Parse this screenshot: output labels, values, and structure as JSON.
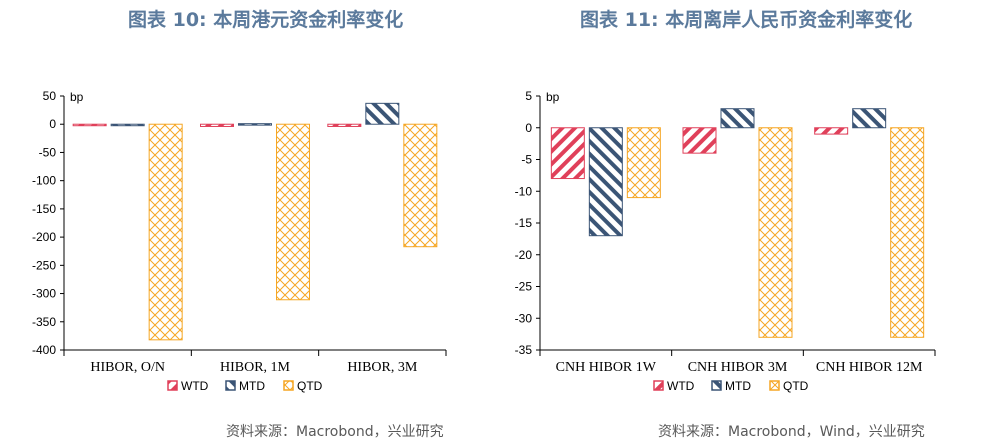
{
  "colors": {
    "wtd": "#e0405a",
    "mtd": "#3b5576",
    "qtd": "#f5a623",
    "title": "#5b7a9c"
  },
  "left": {
    "title": "图表 10: 本周港元资金利率变化",
    "source": "资料来源：Macrobond，兴业研究",
    "chart_data": {
      "type": "bar",
      "unit_label": "bp",
      "categories": [
        "HIBOR, O/N",
        "HIBOR, 1M",
        "HIBOR, 3M"
      ],
      "ylim": [
        -400,
        50
      ],
      "yticks": [
        50,
        0,
        -50,
        -100,
        -150,
        -200,
        -250,
        -300,
        -350,
        -400
      ],
      "series": [
        {
          "name": "WTD",
          "values": [
            -2,
            -4,
            -4
          ]
        },
        {
          "name": "MTD",
          "values": [
            -1,
            1,
            37
          ]
        },
        {
          "name": "QTD",
          "values": [
            -382,
            -311,
            -217
          ]
        }
      ],
      "legend": "bottom-center",
      "grid": false
    }
  },
  "right": {
    "title": "图表 11: 本周离岸人民币资金利率变化",
    "source": "资料来源：Macrobond，Wind，兴业研究",
    "chart_data": {
      "type": "bar",
      "unit_label": "bp",
      "categories": [
        "CNH HIBOR 1W",
        "CNH HIBOR 3M",
        "CNH HIBOR 12M"
      ],
      "ylim": [
        -35,
        5
      ],
      "yticks": [
        5,
        0,
        -5,
        -10,
        -15,
        -20,
        -25,
        -30,
        -35
      ],
      "series": [
        {
          "name": "WTD",
          "values": [
            -8,
            -4,
            -1
          ]
        },
        {
          "name": "MTD",
          "values": [
            -17,
            3,
            3
          ]
        },
        {
          "name": "QTD",
          "values": [
            -11,
            -33,
            -33
          ]
        }
      ],
      "legend": "bottom-center",
      "grid": false
    }
  }
}
